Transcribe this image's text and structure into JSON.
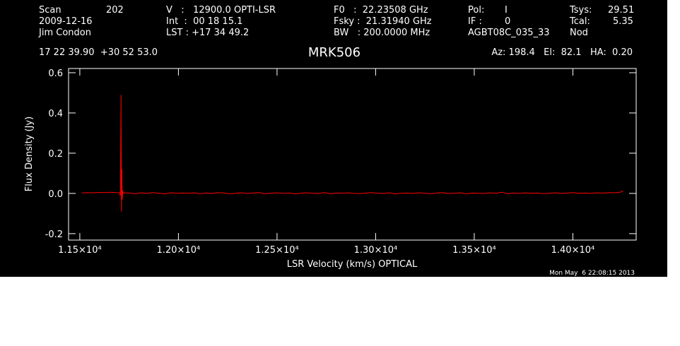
{
  "chart_data": {
    "type": "line",
    "header": [
      [
        "Scan",
        "202",
        "V   :   12900.0 OPTI-LSR",
        "F0   :  22.23508 GHz",
        "Pol:",
        "I",
        "Tsys:",
        "29.51"
      ],
      [
        "2009-12-16",
        "Int  :  00 18 15.1",
        "Fsky :  21.31940 GHz",
        "IF :",
        "0",
        "Tcal:",
        "5.35"
      ],
      [
        "Jim Condon",
        "LST : +17 34 49.2",
        "BW   : 200.0000 MHz",
        "AGBT08C_035_33",
        "Nod"
      ]
    ],
    "coords": "17 22 39.90  +30 52 53.0",
    "title": "MRK506",
    "pointing": "Az: 198.4   El:  82.1   HA:  0.20",
    "x_label": "LSR Velocity (km/s) OPTICAL",
    "y_label": "Flux Density (Jy)",
    "timestamp": "Mon May  6 22:08:15 2013",
    "xlim": [
      11443,
      14321
    ],
    "ylim": [
      -0.232,
      0.621
    ],
    "xticks": [
      {
        "value": 11500,
        "label": "1.15×10⁴"
      },
      {
        "value": 12000,
        "label": "1.20×10⁴"
      },
      {
        "value": 12500,
        "label": "1.25×10⁴"
      },
      {
        "value": 13000,
        "label": "1.30×10⁴"
      },
      {
        "value": 13500,
        "label": "1.35×10⁴"
      },
      {
        "value": 14000,
        "label": "1.40×10⁴"
      }
    ],
    "yticks": [
      -0.2,
      {
        "value": 0,
        "label": "0.0"
      },
      0.2,
      0.4,
      0.6
    ],
    "x": [
      11510,
      11540,
      11570,
      11600,
      11630,
      11660,
      11690,
      11700,
      11706,
      11709,
      11711,
      11713,
      11715,
      11718,
      11722,
      11750,
      11780,
      11810,
      11840,
      11870,
      11900,
      11930,
      11960,
      11990,
      12020,
      12050,
      12080,
      12110,
      12140,
      12170,
      12200,
      12230,
      12260,
      12290,
      12320,
      12350,
      12380,
      12410,
      12440,
      12470,
      12500,
      12530,
      12560,
      12590,
      12620,
      12650,
      12680,
      12710,
      12740,
      12770,
      12800,
      12830,
      12860,
      12890,
      12920,
      12950,
      12980,
      13010,
      13040,
      13070,
      13100,
      13130,
      13160,
      13190,
      13220,
      13250,
      13280,
      13310,
      13340,
      13370,
      13400,
      13430,
      13460,
      13490,
      13520,
      13550,
      13580,
      13610,
      13640,
      13670,
      13700,
      13730,
      13760,
      13790,
      13820,
      13850,
      13880,
      13910,
      13940,
      13970,
      14000,
      14030,
      14060,
      14090,
      14120,
      14150,
      14180,
      14210,
      14240,
      14255
    ],
    "series": [
      {
        "name": "MRK506",
        "color": "#ff0000",
        "values": [
          0.002,
          0.004,
          0.003,
          0.005,
          0.004,
          0.006,
          0.003,
          0.004,
          -0.01,
          0.49,
          -0.09,
          0.12,
          -0.03,
          0.01,
          0.003,
          0.002,
          -0.001,
          0.003,
          0.0,
          0.004,
          0.001,
          -0.002,
          0.003,
          0.001,
          0.002,
          0.001,
          0.003,
          -0.001,
          0.002,
          0.0,
          0.004,
          0.002,
          -0.002,
          0.001,
          0.003,
          0.0,
          0.002,
          0.004,
          -0.001,
          0.001,
          0.003,
          0.0,
          0.002,
          -0.002,
          0.001,
          0.003,
          0.001,
          0.0,
          0.004,
          -0.001,
          0.002,
          0.001,
          0.003,
          0.0,
          -0.001,
          0.002,
          0.004,
          0.001,
          0.0,
          0.003,
          -0.002,
          0.001,
          0.002,
          0.0,
          0.003,
          0.001,
          -0.001,
          0.002,
          0.004,
          0.0,
          0.001,
          0.003,
          -0.002,
          0.002,
          0.001,
          0.0,
          0.003,
          0.001,
          0.006,
          -0.001,
          0.002,
          0.0,
          0.003,
          0.001,
          0.002,
          -0.001,
          0.001,
          0.003,
          0.0,
          0.002,
          0.004,
          0.001,
          0.002,
          0.0,
          0.003,
          0.002,
          0.004,
          0.003,
          0.006,
          0.012
        ]
      }
    ]
  }
}
